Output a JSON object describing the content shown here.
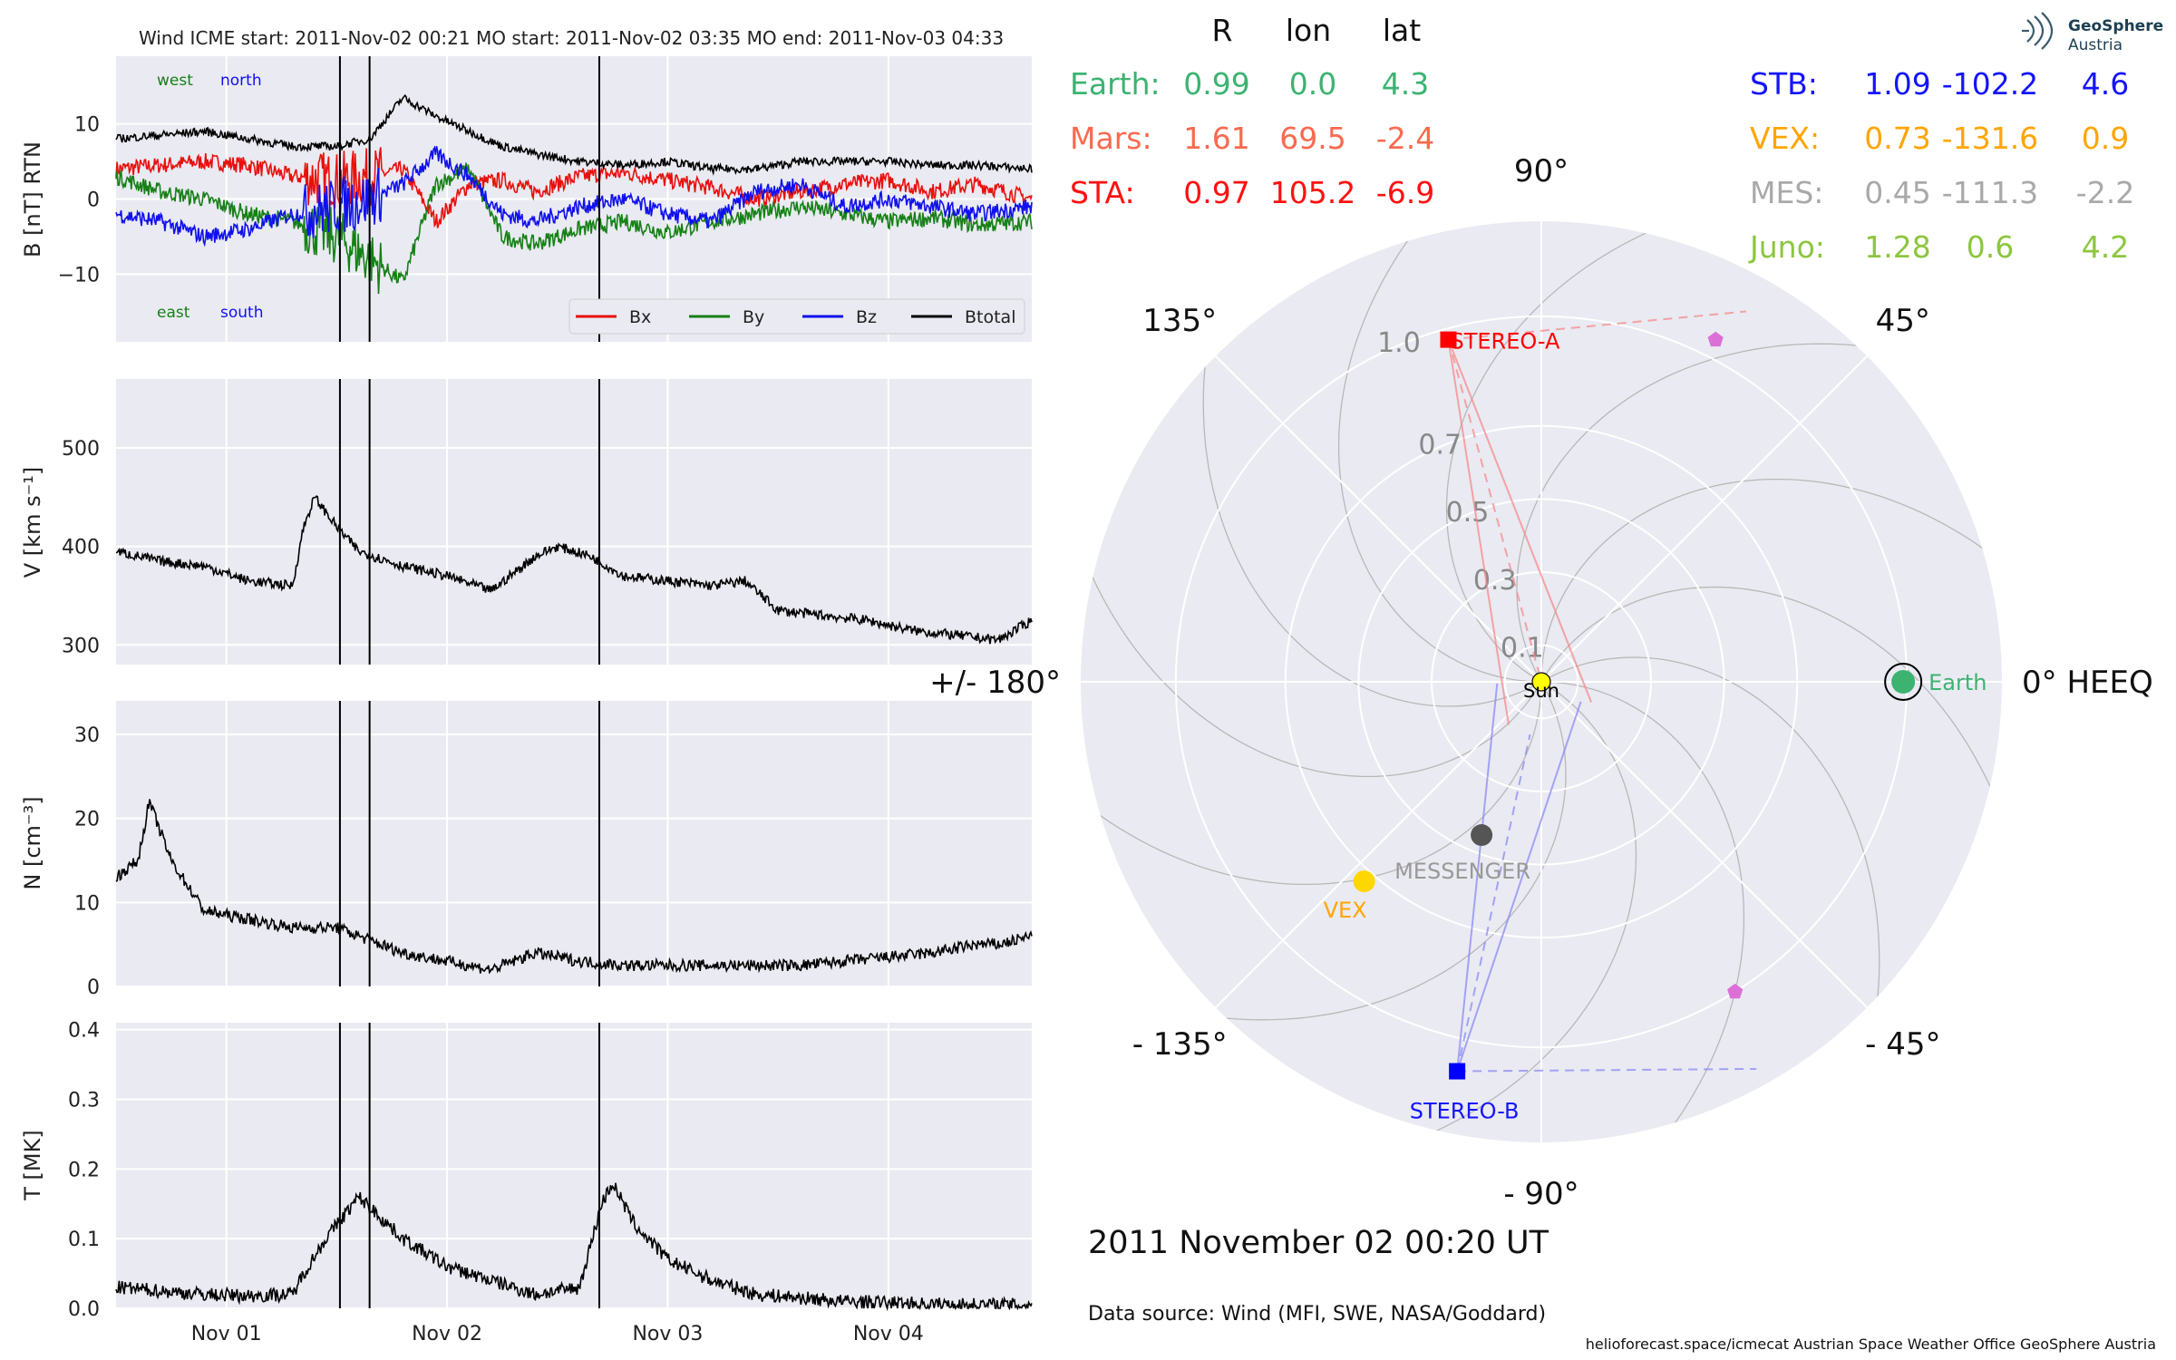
{
  "chart_data": [
    {
      "type": "line",
      "panel": "magnetic-field",
      "title": "Wind    ICME start: 2011-Nov-02 00:21   MO start: 2011-Nov-02 03:35   MO end: 2011-Nov-03 04:33",
      "ylabel": "B [nT] RTN",
      "ylim": [
        -19,
        19
      ],
      "yticks": [
        "10",
        "0",
        "−10"
      ],
      "ytick_values": [
        10,
        0,
        -10
      ],
      "annotations": {
        "west": "west",
        "north": "north",
        "east": "east",
        "south": "south"
      },
      "legend": [
        "Bx",
        "By",
        "Bz",
        "Btotal"
      ],
      "legend_position": "lower right",
      "series": [
        {
          "name": "Bx",
          "color": "#e8100c",
          "x": [
            0,
            0.2,
            0.4,
            0.6,
            0.8,
            1.0,
            1.15,
            1.3,
            1.45,
            1.6,
            1.75,
            1.9,
            2.1,
            2.3,
            2.5,
            2.7,
            2.9,
            3.1,
            3.3,
            3.5,
            3.7,
            3.9,
            4.15
          ],
          "y": [
            4,
            4.5,
            5,
            4.5,
            3,
            2.5,
            3,
            4,
            -3,
            2,
            2.5,
            1,
            3,
            3.5,
            2.5,
            1.5,
            0,
            1,
            2,
            2.5,
            1,
            2,
            0
          ]
        },
        {
          "name": "By",
          "color": "#168016",
          "x": [
            0,
            0.2,
            0.4,
            0.6,
            0.8,
            1.0,
            1.15,
            1.3,
            1.45,
            1.6,
            1.75,
            1.9,
            2.1,
            2.3,
            2.5,
            2.7,
            2.9,
            3.1,
            3.3,
            3.5,
            3.7,
            3.9,
            4.15
          ],
          "y": [
            3,
            1,
            0,
            -2,
            -3,
            -5,
            -8,
            -11,
            2,
            4,
            -5,
            -6,
            -4,
            -3,
            -4.5,
            -3,
            -2,
            -1,
            -2,
            -3,
            -2.5,
            -3.5,
            -3
          ]
        },
        {
          "name": "Bz",
          "color": "#1010ee",
          "x": [
            0,
            0.2,
            0.4,
            0.6,
            0.8,
            1.0,
            1.15,
            1.3,
            1.45,
            1.6,
            1.75,
            1.9,
            2.1,
            2.3,
            2.5,
            2.7,
            2.9,
            3.1,
            3.3,
            3.5,
            3.7,
            3.9,
            4.15
          ],
          "y": [
            -2,
            -3,
            -5,
            -4,
            -2,
            -1,
            0,
            2,
            6,
            3,
            -2,
            -3,
            -1,
            0,
            -2,
            -3,
            1,
            2,
            -1,
            0,
            -1,
            -2,
            -1
          ]
        },
        {
          "name": "Btotal",
          "color": "#000000",
          "x": [
            0,
            0.2,
            0.4,
            0.6,
            0.8,
            1.0,
            1.15,
            1.3,
            1.45,
            1.6,
            1.75,
            1.9,
            2.1,
            2.3,
            2.5,
            2.7,
            2.9,
            3.1,
            3.3,
            3.5,
            3.7,
            3.9,
            4.15
          ],
          "y": [
            8,
            8.5,
            9,
            8,
            7,
            7,
            8,
            13.5,
            11,
            9,
            7,
            6,
            5,
            4.5,
            5,
            4,
            4,
            5,
            5,
            5,
            4.5,
            4.5,
            4
          ]
        }
      ],
      "event_lines_days": [
        1.0146,
        1.149,
        2.19
      ]
    },
    {
      "type": "line",
      "panel": "speed",
      "ylabel": "V [km s⁻¹]",
      "ylim": [
        280,
        570
      ],
      "yticks": [
        "500",
        "400",
        "300"
      ],
      "ytick_values": [
        500,
        400,
        300
      ],
      "series": [
        {
          "name": "V",
          "color": "#000000",
          "x": [
            0,
            0.2,
            0.4,
            0.6,
            0.8,
            0.85,
            0.9,
            1.0,
            1.1,
            1.3,
            1.5,
            1.7,
            1.9,
            2.0,
            2.15,
            2.3,
            2.5,
            2.7,
            2.85,
            3.0,
            3.2,
            3.4,
            3.6,
            3.8,
            4.0,
            4.15
          ],
          "y": [
            395,
            385,
            380,
            365,
            360,
            420,
            450,
            420,
            395,
            380,
            370,
            355,
            390,
            400,
            390,
            370,
            365,
            360,
            365,
            335,
            330,
            325,
            315,
            310,
            305,
            325
          ]
        }
      ],
      "event_lines_days": [
        1.0146,
        1.149,
        2.19
      ]
    },
    {
      "type": "line",
      "panel": "density",
      "ylabel": "N [cm⁻³]",
      "ylim": [
        0,
        34
      ],
      "yticks": [
        "30",
        "20",
        "10",
        "0"
      ],
      "ytick_values": [
        30,
        20,
        10,
        0
      ],
      "series": [
        {
          "name": "N",
          "color": "#000000",
          "x": [
            0,
            0.1,
            0.15,
            0.25,
            0.4,
            0.6,
            0.8,
            1.0,
            1.1,
            1.3,
            1.5,
            1.7,
            1.9,
            2.1,
            2.3,
            2.5,
            2.7,
            2.9,
            3.1,
            3.3,
            3.5,
            3.7,
            3.9,
            4.0,
            4.15
          ],
          "y": [
            13,
            15,
            22,
            15,
            9,
            8,
            7,
            7,
            6,
            4,
            3,
            2,
            4,
            3,
            2.5,
            2.5,
            2.5,
            2.5,
            2.5,
            3,
            3.5,
            4,
            5,
            5,
            6
          ]
        }
      ],
      "event_lines_days": [
        1.0146,
        1.149,
        2.19
      ]
    },
    {
      "type": "line",
      "panel": "temperature",
      "ylabel": "T [MK]",
      "ylim": [
        0,
        0.41
      ],
      "yticks": [
        "0.4",
        "0.3",
        "0.2",
        "0.1",
        "0.0"
      ],
      "ytick_values": [
        0.4,
        0.3,
        0.2,
        0.1,
        0.0
      ],
      "xticks": [
        "Nov 01",
        "Nov 02",
        "Nov 03",
        "Nov 04"
      ],
      "xtick_days": [
        0.5,
        1.5,
        2.5,
        3.5
      ],
      "xlim_days": [
        0,
        4.15
      ],
      "series": [
        {
          "name": "T",
          "color": "#000000",
          "x": [
            0,
            0.2,
            0.4,
            0.6,
            0.8,
            0.85,
            0.95,
            1.0,
            1.1,
            1.2,
            1.3,
            1.5,
            1.7,
            1.9,
            2.1,
            2.2,
            2.25,
            2.35,
            2.5,
            2.7,
            2.9,
            3.1,
            3.3,
            3.5,
            3.7,
            3.9,
            4.15
          ],
          "y": [
            0.03,
            0.025,
            0.02,
            0.018,
            0.02,
            0.05,
            0.1,
            0.12,
            0.16,
            0.13,
            0.1,
            0.06,
            0.04,
            0.02,
            0.03,
            0.15,
            0.18,
            0.12,
            0.07,
            0.04,
            0.02,
            0.015,
            0.01,
            0.008,
            0.006,
            0.005,
            0.005
          ]
        }
      ],
      "event_lines_days": [
        1.0146,
        1.149,
        2.19
      ]
    },
    {
      "type": "scatter",
      "panel": "polar-positions",
      "header": {
        "cols": [
          "R",
          "lon",
          "lat"
        ]
      },
      "table_left": [
        {
          "name": "Earth:",
          "R": "0.99",
          "lon": "0.0",
          "lat": "4.3",
          "color": "#3cb371"
        },
        {
          "name": "Mars:",
          "R": "1.61",
          "lon": "69.5",
          "lat": "-2.4",
          "color": "#f96a4f"
        },
        {
          "name": "STA:",
          "R": "0.97",
          "lon": "105.2",
          "lat": "-6.9",
          "color": "#ff1010"
        }
      ],
      "table_right": [
        {
          "name": "STB:",
          "R": "1.09",
          "lon": "-102.2",
          "lat": "4.6",
          "color": "#1414ff"
        },
        {
          "name": "VEX:",
          "R": "0.73",
          "lon": "-131.6",
          "lat": "0.9",
          "color": "#ffa500"
        },
        {
          "name": "MES:",
          "R": "0.45",
          "lon": "-111.3",
          "lat": "-2.2",
          "color": "#a9a9a9"
        },
        {
          "name": "Juno:",
          "R": "1.28",
          "lon": "0.6",
          "lat": "4.2",
          "color": "#8cc63f"
        }
      ],
      "angle_labels": [
        "90°",
        "45°",
        "0° HEEQ",
        "- 45°",
        "- 90°",
        "- 135°",
        "+/- 180°",
        "135°"
      ],
      "angle_degrees": [
        90,
        45,
        0,
        -45,
        -90,
        -135,
        180,
        135
      ],
      "radial_labels": [
        "1.0",
        "0.7",
        "0.5",
        "0.3",
        "0.1"
      ],
      "radial_values": [
        1.0,
        0.7,
        0.5,
        0.3,
        0.1
      ],
      "r_max": 1.26,
      "objects": [
        {
          "name": "STEREO-A",
          "r": 0.97,
          "lon": 105.2,
          "color": "#ff0000",
          "marker": "square",
          "label": "STEREO-A"
        },
        {
          "name": "STEREO-B",
          "r": 1.09,
          "lon": -102.2,
          "color": "#0000ff",
          "marker": "square",
          "label": "STEREO-B"
        },
        {
          "name": "Earth",
          "r": 0.99,
          "lon": 0.0,
          "color": "#3cb371",
          "marker": "circle-ring",
          "label": "Earth"
        },
        {
          "name": "VEX",
          "r": 0.73,
          "lon": -131.6,
          "color": "#ffd700",
          "marker": "circle",
          "label": "VEX"
        },
        {
          "name": "MESSENGER",
          "r": 0.45,
          "lon": -111.3,
          "color": "#555555",
          "marker": "circle",
          "label": "MESSENGER"
        },
        {
          "name": "Sun",
          "r": 0,
          "lon": 0,
          "color": "#ffff00",
          "marker": "sun",
          "label": "Sun"
        },
        {
          "name": "PSP-1",
          "r": 1.05,
          "lon": 63,
          "color": "#da70d6",
          "marker": "pentagon",
          "label": ""
        },
        {
          "name": "PSP-2",
          "r": 1.0,
          "lon": -58,
          "color": "#da70d6",
          "marker": "pentagon",
          "label": ""
        }
      ],
      "date": "2011 November 02  00:20 UT",
      "source": "Data source: Wind (MFI, SWE, NASA/Goddard)",
      "footer": "helioforecast.space/icmecat   Austrian Space Weather Office   GeoSphere Austria",
      "logo": {
        "line1": "GeoSphere",
        "line2": "Austria"
      }
    }
  ]
}
